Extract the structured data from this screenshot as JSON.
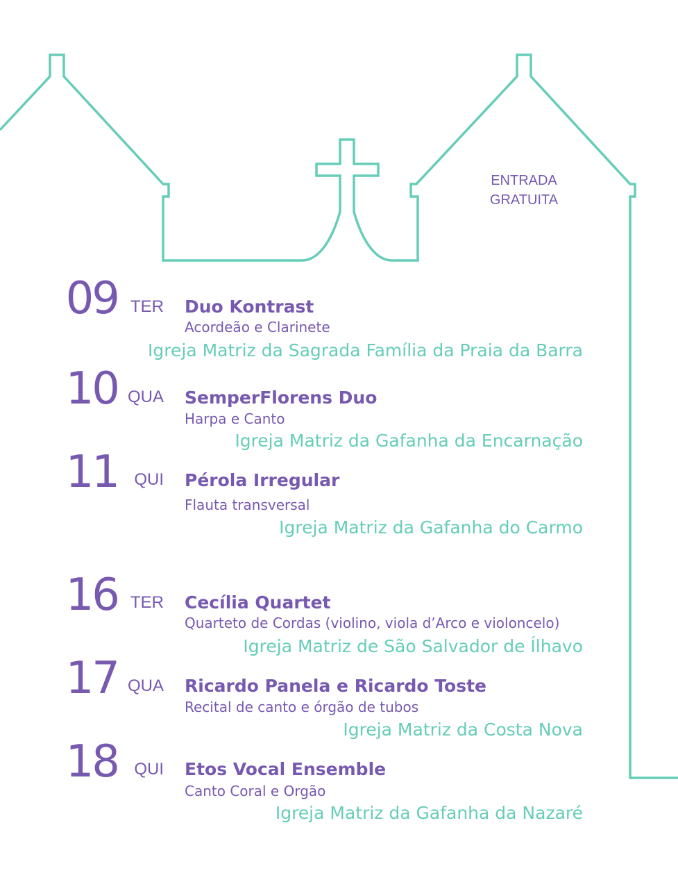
{
  "entry_notice": [
    "ENTRADA",
    "GRATUITA"
  ],
  "colors": {
    "purple": "#7759b0",
    "teal": "#66cdb8"
  },
  "events": [
    {
      "day": "09",
      "weekday": "TER",
      "title": "Duo Kontrast",
      "subtitle": "Acordeão e Clarinete",
      "venue": "Igreja Matriz da Sagrada Família da Praia da Barra"
    },
    {
      "day": "10",
      "weekday": "QUA",
      "title": "SemperFlorens Duo",
      "subtitle": "Harpa e Canto",
      "venue": "Igreja Matriz da Gafanha da Encarnação"
    },
    {
      "day": "11",
      "weekday": "QUI",
      "title": "Pérola Irregular",
      "subtitle": "Flauta transversal",
      "venue": "Igreja Matriz da Gafanha do Carmo"
    },
    {
      "day": "16",
      "weekday": "TER",
      "title": "Cecília Quartet",
      "subtitle": "Quarteto de Cordas (violino, viola d’Arco e violoncelo)",
      "venue": "Igreja Matriz de São Salvador de Ílhavo"
    },
    {
      "day": "17",
      "weekday": "QUA",
      "title": "Ricardo Panela e Ricardo Toste",
      "subtitle": "Recital de canto e órgão de tubos",
      "venue": "Igreja Matriz da Costa Nova"
    },
    {
      "day": "18",
      "weekday": "QUI",
      "title": "Etos Vocal Ensemble",
      "subtitle": "Canto Coral e Orgão",
      "venue": "Igreja Matriz da Gafanha da Nazaré"
    }
  ]
}
